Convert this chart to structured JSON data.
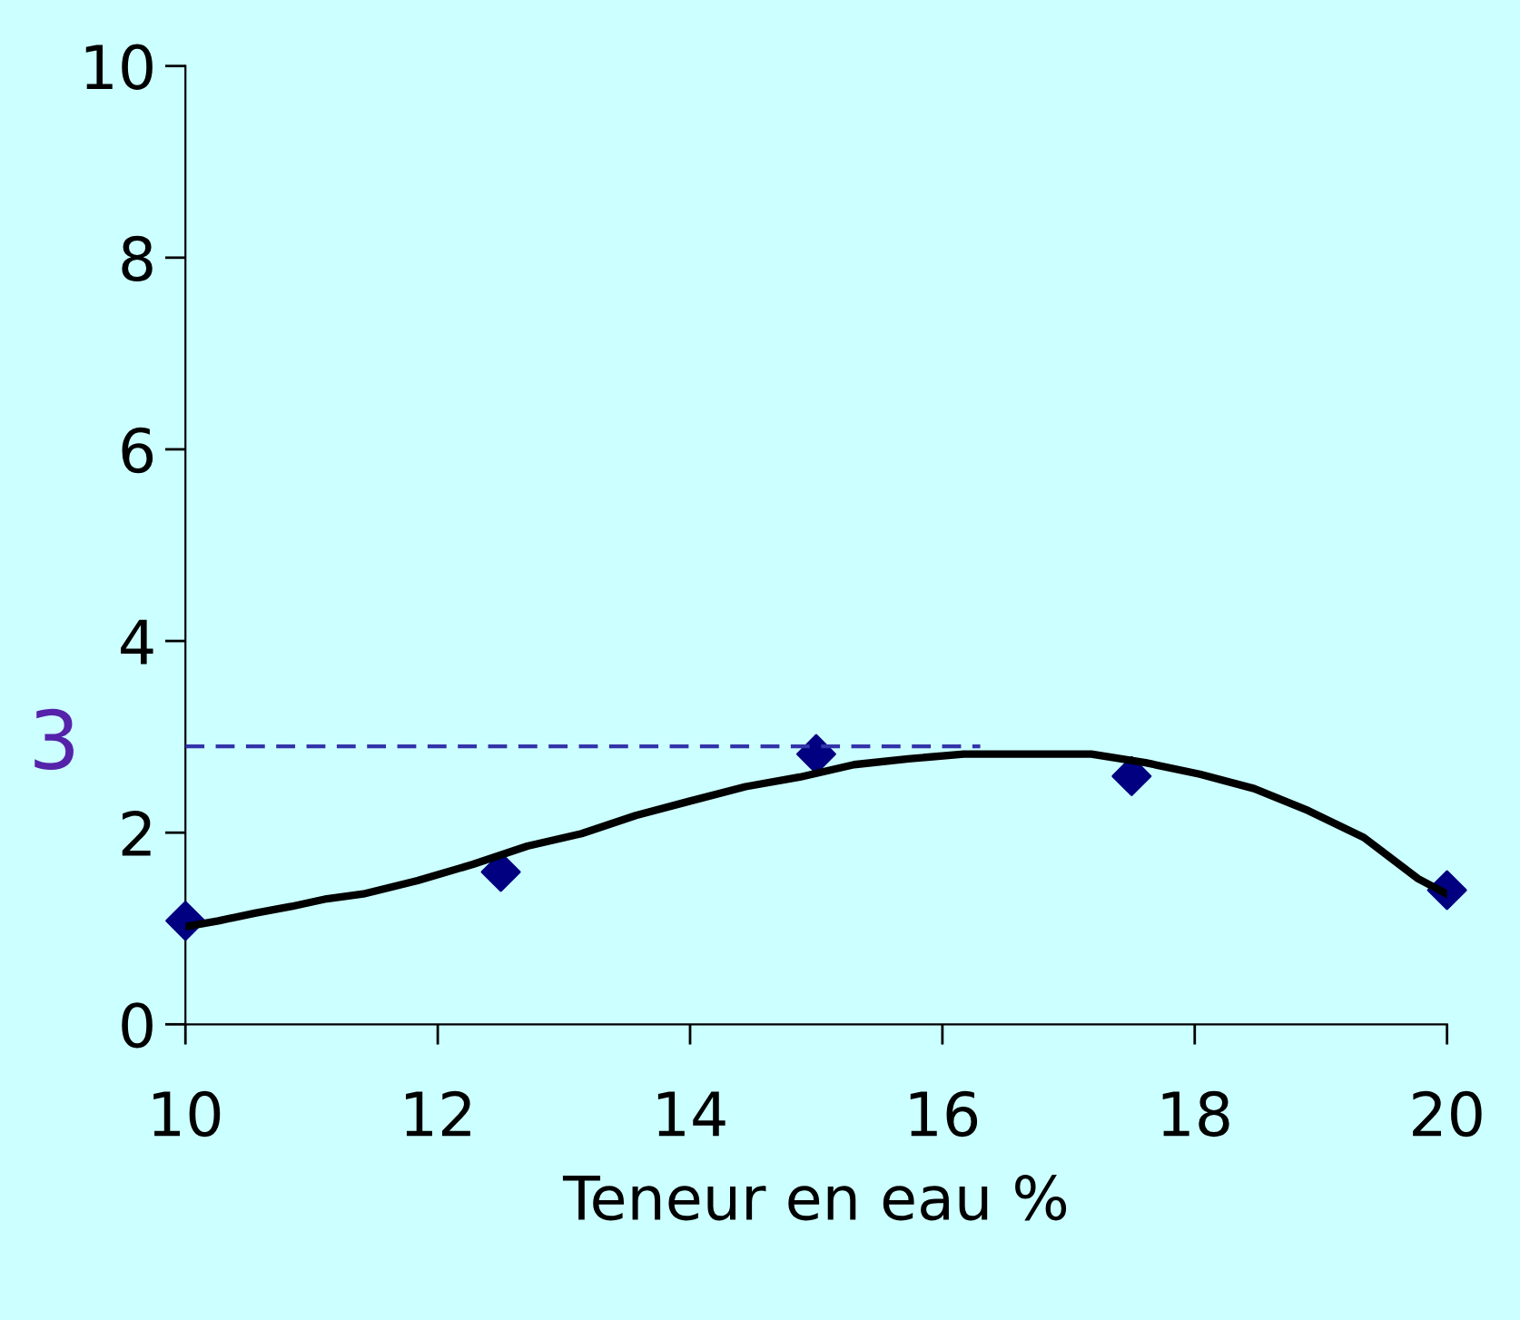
{
  "chart_data": {
    "type": "line",
    "xlabel": "Teneur en eau %",
    "xlim": [
      10,
      20
    ],
    "ylim": [
      0,
      10
    ],
    "xticks": [
      10,
      12,
      14,
      16,
      18,
      20
    ],
    "yticks": [
      0,
      2,
      4,
      6,
      8,
      10
    ],
    "grid": false,
    "legend": false,
    "series": [
      {
        "type": "scatter",
        "color": "#000080",
        "marker": "diamond",
        "x": [
          10,
          12.5,
          15,
          17.5,
          20
        ],
        "values": [
          1.08,
          1.59,
          2.82,
          2.59,
          1.4
        ]
      },
      {
        "color": "#000000",
        "marker": "none",
        "line_style": "solid",
        "x": [
          10,
          10.26,
          10.55,
          10.84,
          11.12,
          11.41,
          11.84,
          12.28,
          12.71,
          13.14,
          13.57,
          14.0,
          14.44,
          14.87,
          15.3,
          15.73,
          16.17,
          16.6,
          17.18,
          17.61,
          18.04,
          18.47,
          18.9,
          19.34,
          19.77,
          20
        ],
        "values": [
          1.02,
          1.08,
          1.16,
          1.23,
          1.31,
          1.36,
          1.5,
          1.67,
          1.86,
          1.99,
          2.18,
          2.33,
          2.48,
          2.58,
          2.71,
          2.77,
          2.82,
          2.82,
          2.82,
          2.73,
          2.61,
          2.46,
          2.23,
          1.95,
          1.52,
          1.36
        ]
      },
      {
        "color": "#3333aa",
        "marker": "none",
        "line_style": "dashed",
        "x": [
          10,
          16.3
        ],
        "values": [
          2.9,
          2.9
        ]
      }
    ],
    "annotations": [
      {
        "text": "3",
        "x": 10,
        "y": 2.9
      }
    ]
  }
}
